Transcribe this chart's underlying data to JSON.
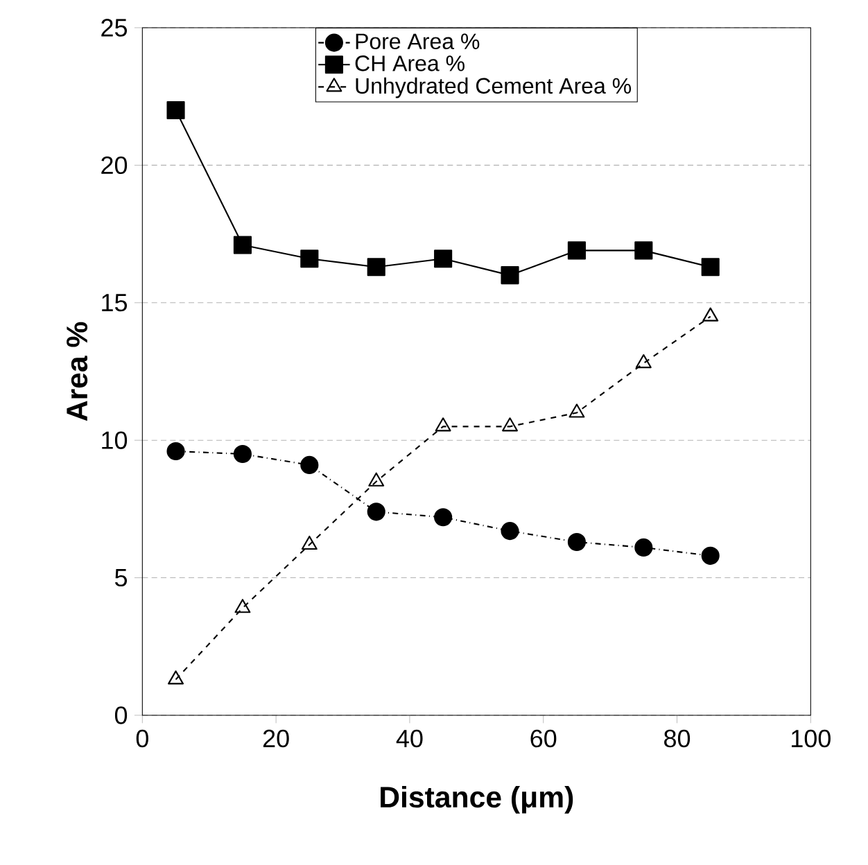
{
  "chart_data": {
    "type": "line",
    "xlabel": "Distance (μm)",
    "ylabel": "Area %",
    "x": [
      5,
      15,
      25,
      35,
      45,
      55,
      65,
      75,
      85
    ],
    "series": [
      {
        "name": "Pore Area %",
        "color": "#000000",
        "marker": "circle",
        "line_style": "dashdot",
        "values": [
          9.6,
          9.5,
          9.1,
          7.4,
          7.2,
          6.7,
          6.3,
          6.1,
          5.8
        ]
      },
      {
        "name": "CH Area %",
        "color": "#000000",
        "marker": "square",
        "line_style": "solid",
        "values": [
          22,
          17.1,
          16.6,
          16.3,
          16.6,
          16.0,
          16.9,
          16.9,
          16.3
        ]
      },
      {
        "name": "Unhydrated Cement Area %",
        "color": "#000000",
        "marker": "triangle",
        "line_style": "dashed",
        "values": [
          1.3,
          3.9,
          6.2,
          8.5,
          10.5,
          10.5,
          11.0,
          12.8,
          14.5
        ]
      }
    ],
    "xlim": [
      0,
      100
    ],
    "xticks": [
      0,
      20,
      40,
      60,
      80,
      100
    ],
    "ylim": [
      0,
      25
    ],
    "yticks": [
      0,
      5,
      10,
      15,
      20,
      25
    ],
    "grid": "y",
    "legend": "top"
  }
}
